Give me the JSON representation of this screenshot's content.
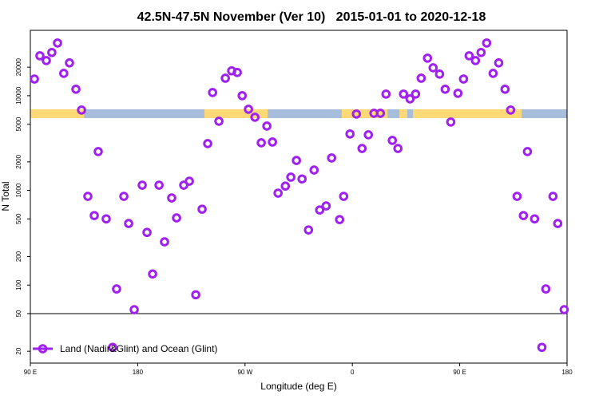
{
  "chart_data": {
    "type": "scatter",
    "title": "42.5N-47.5N November (Ver 10)   2015-01-01 to 2020-12-18",
    "xlabel": "Longitude (deg E)",
    "ylabel": "N Total",
    "xlim": [
      90,
      540
    ],
    "ylim": [
      15,
      49000
    ],
    "yscale": "log",
    "x_ticks": [
      {
        "value": 90,
        "label": "90 E"
      },
      {
        "value": 180,
        "label": "180"
      },
      {
        "value": 270,
        "label": "90 W"
      },
      {
        "value": 360,
        "label": "0"
      },
      {
        "value": 450,
        "label": "90 E"
      },
      {
        "value": 540,
        "label": "180"
      }
    ],
    "y_ticks": [
      {
        "value": 20,
        "label": "20"
      },
      {
        "value": 50,
        "label": "50"
      },
      {
        "value": 100,
        "label": "100"
      },
      {
        "value": 200,
        "label": "200"
      },
      {
        "value": 500,
        "label": "500"
      },
      {
        "value": 1000,
        "label": "1000"
      },
      {
        "value": 2000,
        "label": "2000"
      },
      {
        "value": 5000,
        "label": "5000"
      },
      {
        "value": 10000,
        "label": "10000"
      },
      {
        "value": 20000,
        "label": "20000"
      }
    ],
    "reference_line": 50,
    "legend": {
      "label": "Land (Nadir&Glint) and Ocean (Glint)",
      "placement": "bottom-left"
    },
    "series": [
      {
        "name": "Land (Nadir&Glint) and Ocean (Glint)",
        "color": "#A020F0",
        "x": [
          93.4,
          98,
          103.4,
          108,
          112.8,
          118,
          122.8,
          128.2,
          132.9,
          138.2,
          143.6,
          146.9,
          153.6,
          159,
          162.3,
          168.4,
          172.4,
          177.1,
          183.8,
          187.8,
          192.5,
          197.9,
          202.5,
          208.5,
          212.6,
          218.6,
          223.3,
          228.7,
          234,
          238.7,
          242.8,
          248.1,
          253.5,
          258.8,
          263.5,
          267.6,
          272.9,
          278.3,
          283.6,
          288.3,
          293,
          297.7,
          303.8,
          308.4,
          313.1,
          317.8,
          323.2,
          327.9,
          332.6,
          338,
          342.6,
          349.3,
          352.7,
          358,
          363.4,
          368.1,
          373.4,
          378.1,
          383.5,
          388.2,
          393.5,
          398.2,
          402.9,
          408.3,
          413,
          417.7,
          423,
          427.7,
          433.1,
          437.8,
          442.5,
          448.5,
          453.2,
          457.9,
          463.2,
          467.9,
          472.6,
          478,
          482.7,
          488,
          492.7,
          498.1,
          503.4,
          506.8,
          512.8,
          518.9,
          522.2,
          528.2,
          532.2,
          537.6
        ],
        "y": [
          15000,
          26400,
          23500,
          28600,
          36000,
          17200,
          22200,
          11700,
          7050,
          865,
          542,
          2570,
          500,
          22,
          91,
          865,
          447,
          55,
          1135,
          360,
          131,
          1135,
          286,
          832,
          512,
          1135,
          1250,
          79,
          633,
          3120,
          10800,
          5370,
          15300,
          18300,
          17600,
          10000,
          7190,
          5920,
          3180,
          4780,
          3240,
          935,
          1110,
          1380,
          2070,
          1320,
          382,
          1640,
          621,
          685,
          2200,
          492,
          865,
          3940,
          6400,
          2770,
          3860,
          6520,
          6520,
          10400,
          3370,
          2770,
          10400,
          9250,
          10400,
          15300,
          24900,
          19700,
          16900,
          11700,
          5270,
          10600,
          15000,
          26400,
          23500,
          28600,
          36000,
          17200,
          22200,
          11700,
          7050,
          865,
          542,
          2570,
          500,
          22,
          91,
          865,
          447,
          55
        ]
      }
    ],
    "surface_band": {
      "land_color": "#FED976",
      "ocean_color": "#A6BDDB",
      "land_ranges": [
        [
          90,
          135
        ],
        [
          236,
          289
        ],
        [
          351,
          389.5
        ],
        [
          399.5,
          406
        ],
        [
          410.8,
          502
        ]
      ]
    }
  }
}
